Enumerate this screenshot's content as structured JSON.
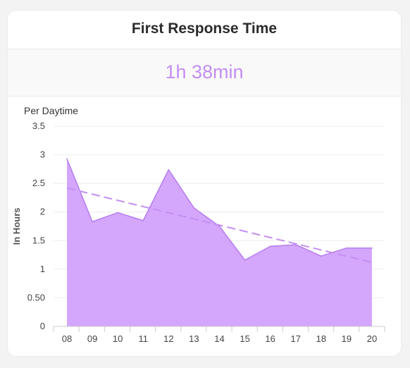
{
  "card": {
    "title": "First Response Time",
    "kpi_value": "1h 38min"
  },
  "colors": {
    "accent": "#c48ef3",
    "area_fill": "#d4a6fc",
    "area_stroke": "#b57ef0",
    "trend_line": "#c48ef3",
    "text": "#444444",
    "grid": "#eeeeee"
  },
  "chart_data": {
    "type": "area",
    "title": "Per Daytime",
    "xlabel": "",
    "ylabel": "In Hours",
    "categories": [
      "08",
      "09",
      "10",
      "11",
      "12",
      "13",
      "14",
      "15",
      "16",
      "17",
      "18",
      "19",
      "20"
    ],
    "yticks": [
      "0",
      "0.50",
      "1",
      "1.5",
      "2",
      "2.5",
      "3",
      "3.5"
    ],
    "ylim": [
      0,
      3.5
    ],
    "grid": true,
    "series": [
      {
        "values": [
          2.93,
          1.83,
          1.99,
          1.85,
          2.74,
          2.07,
          1.75,
          1.16,
          1.4,
          1.43,
          1.23,
          1.37,
          1.37
        ]
      }
    ],
    "trendline": {
      "start": 2.42,
      "end": 1.12,
      "style": "dashed"
    }
  }
}
